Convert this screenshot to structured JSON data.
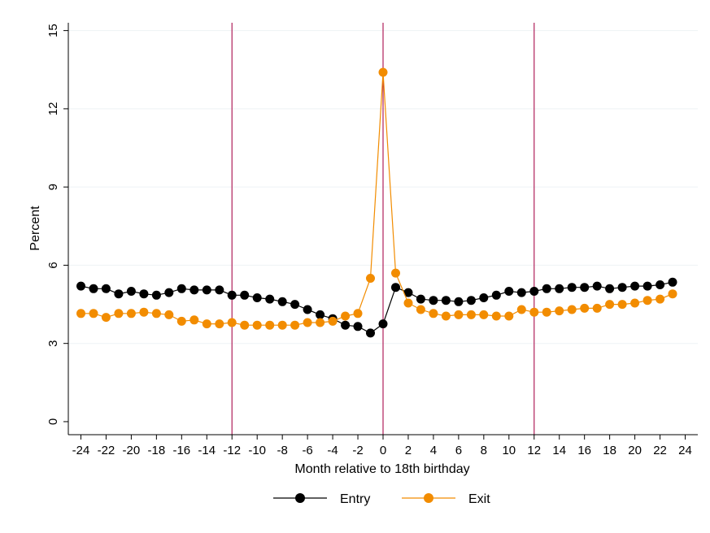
{
  "chart_data": {
    "type": "line",
    "title": "",
    "xlabel": "Month relative to 18th birthday",
    "ylabel": "Percent",
    "xlim": [
      -25,
      25
    ],
    "ylim": [
      -0.5,
      15.3
    ],
    "xticks": [
      -24,
      -22,
      -20,
      -18,
      -16,
      -14,
      -12,
      -10,
      -8,
      -6,
      -4,
      -2,
      0,
      2,
      4,
      6,
      8,
      10,
      12,
      14,
      16,
      18,
      20,
      22,
      24
    ],
    "yticks": [
      0,
      3,
      6,
      9,
      12,
      15
    ],
    "grid": "horizontal",
    "legend_position": "bottom",
    "reference_lines_x": [
      -12,
      0,
      12
    ],
    "reference_line_color": "#b0205a",
    "x": [
      -24,
      -23,
      -22,
      -21,
      -20,
      -19,
      -18,
      -17,
      -16,
      -15,
      -14,
      -13,
      -12,
      -11,
      -10,
      -9,
      -8,
      -7,
      -6,
      -5,
      -4,
      -3,
      -2,
      -1,
      0,
      1,
      2,
      3,
      4,
      5,
      6,
      7,
      8,
      9,
      10,
      11,
      12,
      13,
      14,
      15,
      16,
      17,
      18,
      19,
      20,
      21,
      22,
      23
    ],
    "series": [
      {
        "name": "Entry",
        "color": "#000000",
        "values": [
          5.2,
          5.1,
          5.1,
          4.9,
          5.0,
          4.9,
          4.85,
          4.95,
          5.1,
          5.05,
          5.05,
          5.05,
          4.85,
          4.85,
          4.75,
          4.7,
          4.6,
          4.5,
          4.3,
          4.1,
          3.95,
          3.7,
          3.65,
          3.4,
          3.75,
          5.15,
          4.95,
          4.7,
          4.65,
          4.65,
          4.6,
          4.65,
          4.75,
          4.85,
          5.0,
          4.95,
          5.0,
          5.1,
          5.1,
          5.15,
          5.15,
          5.2,
          5.1,
          5.15,
          5.2,
          5.2,
          5.25,
          5.35
        ]
      },
      {
        "name": "Exit",
        "color": "#f28c00",
        "values": [
          4.15,
          4.15,
          4.0,
          4.15,
          4.15,
          4.2,
          4.15,
          4.1,
          3.85,
          3.9,
          3.75,
          3.75,
          3.8,
          3.7,
          3.7,
          3.7,
          3.7,
          3.7,
          3.8,
          3.8,
          3.85,
          4.05,
          4.15,
          5.5,
          13.4,
          5.7,
          4.55,
          4.3,
          4.15,
          4.05,
          4.1,
          4.1,
          4.1,
          4.05,
          4.05,
          4.3,
          4.2,
          4.2,
          4.25,
          4.3,
          4.35,
          4.35,
          4.5,
          4.5,
          4.55,
          4.65,
          4.7,
          4.9
        ]
      }
    ]
  }
}
